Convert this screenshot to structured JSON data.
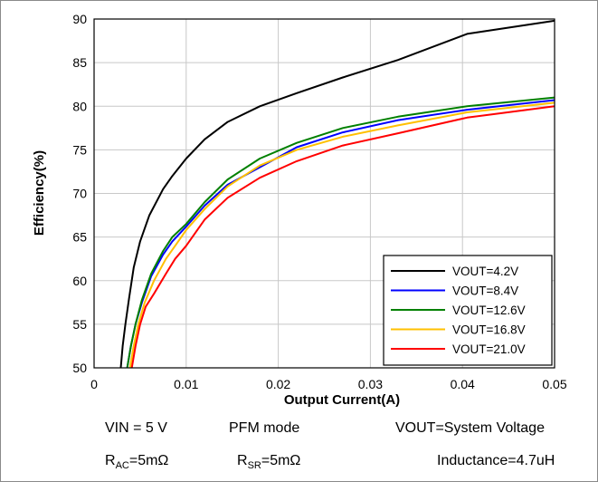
{
  "chart_data": {
    "type": "line",
    "xlabel": "Output Current(A)",
    "ylabel": "Efficiency(%)",
    "xlim": [
      0,
      0.05
    ],
    "ylim": [
      50,
      90
    ],
    "xticks": [
      "0",
      "0.01",
      "0.02",
      "0.03",
      "0.04",
      "0.05"
    ],
    "yticks": [
      "50",
      "55",
      "60",
      "65",
      "70",
      "75",
      "80",
      "85",
      "90"
    ],
    "grid": true,
    "legend_position": "bottom-right",
    "series": [
      {
        "name": "VOUT=4.2V",
        "color": "#000000",
        "x": [
          0.0029,
          0.0031,
          0.0034,
          0.0038,
          0.0043,
          0.005,
          0.006,
          0.0075,
          0.0085,
          0.01,
          0.012,
          0.0145,
          0.018,
          0.022,
          0.027,
          0.033,
          0.0405,
          0.05
        ],
        "y": [
          50.0,
          52.5,
          55.0,
          58.0,
          61.5,
          64.5,
          67.5,
          70.5,
          72.0,
          74.0,
          76.2,
          78.2,
          80.0,
          81.5,
          83.3,
          85.3,
          88.3,
          89.8
        ]
      },
      {
        "name": "VOUT=8.4V",
        "color": "#0000ff",
        "x": [
          0.0036,
          0.004,
          0.0045,
          0.0052,
          0.0062,
          0.0075,
          0.0085,
          0.01,
          0.012,
          0.0145,
          0.018,
          0.022,
          0.027,
          0.033,
          0.0405,
          0.05
        ],
        "y": [
          50.0,
          52.5,
          55.0,
          57.5,
          60.5,
          63.0,
          64.5,
          66.2,
          68.6,
          71.0,
          73.0,
          75.3,
          77.0,
          78.4,
          79.6,
          80.7
        ]
      },
      {
        "name": "VOUT=12.6V",
        "color": "#008000",
        "x": [
          0.0036,
          0.004,
          0.0045,
          0.0052,
          0.0062,
          0.0075,
          0.0085,
          0.01,
          0.012,
          0.0145,
          0.018,
          0.022,
          0.027,
          0.033,
          0.0405,
          0.05
        ],
        "y": [
          50.0,
          52.5,
          55.0,
          57.8,
          60.8,
          63.4,
          65.0,
          66.5,
          69.0,
          71.6,
          74.0,
          75.8,
          77.5,
          78.8,
          80.0,
          81.0
        ]
      },
      {
        "name": "VOUT=16.8V",
        "color": "#ffc000",
        "x": [
          0.0039,
          0.0043,
          0.0048,
          0.0055,
          0.0065,
          0.0078,
          0.0088,
          0.01,
          0.012,
          0.0145,
          0.018,
          0.022,
          0.027,
          0.033,
          0.0405,
          0.05
        ],
        "y": [
          50.0,
          52.5,
          55.0,
          57.5,
          60.0,
          62.5,
          64.0,
          65.8,
          68.2,
          70.8,
          73.2,
          75.0,
          76.5,
          77.8,
          79.3,
          80.4
        ]
      },
      {
        "name": "VOUT=21.0V",
        "color": "#ff0000",
        "x": [
          0.0041,
          0.0045,
          0.005,
          0.0056,
          0.0065,
          0.0078,
          0.0088,
          0.01,
          0.012,
          0.0145,
          0.018,
          0.022,
          0.027,
          0.033,
          0.0405,
          0.05
        ],
        "y": [
          50.0,
          52.5,
          55.0,
          57.0,
          58.5,
          60.8,
          62.5,
          64.0,
          67.0,
          69.5,
          71.8,
          73.7,
          75.5,
          76.9,
          78.7,
          80.0
        ]
      }
    ]
  },
  "notes": {
    "vin": "VIN = 5 V",
    "mode": "PFM mode",
    "vout": "VOUT=System Voltage",
    "rac_main": "R",
    "rac_sub": "AC",
    "rac_value": "=5mΩ",
    "rsr_main": "R",
    "rsr_sub": "SR",
    "rsr_value": "=5mΩ",
    "inductance": "Inductance=4.7uH"
  }
}
